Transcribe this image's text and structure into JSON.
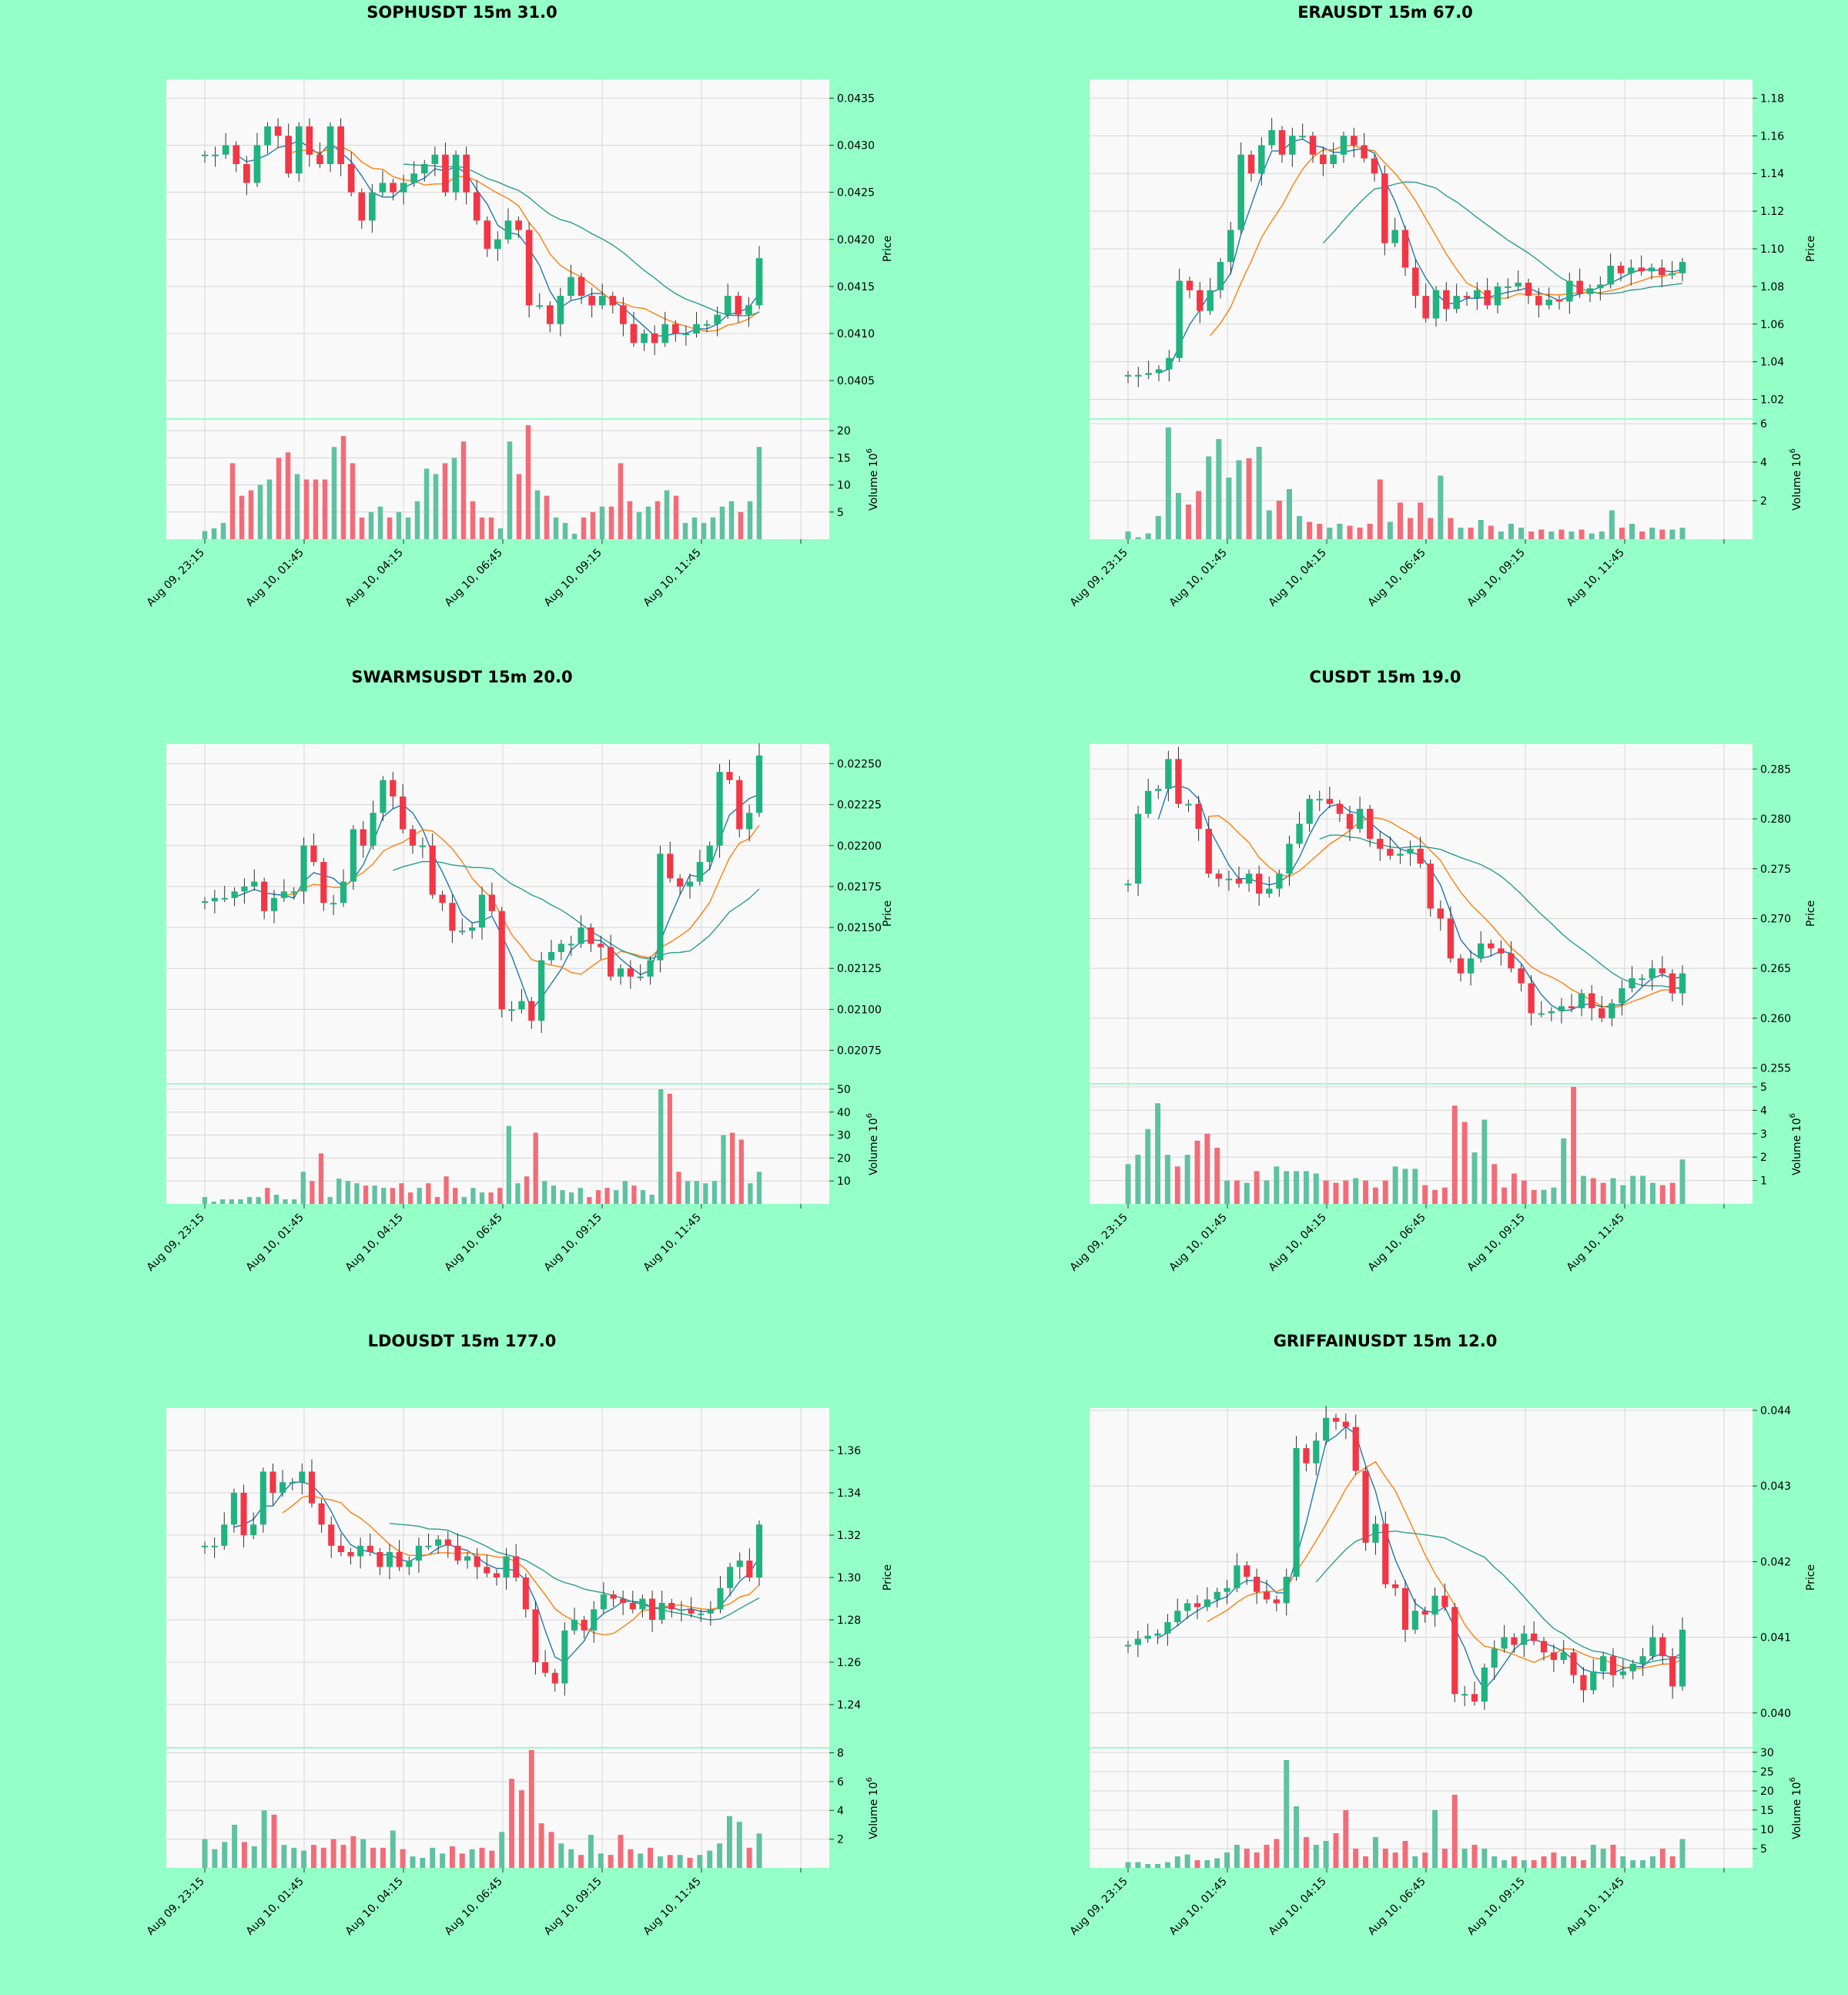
{
  "colors": {
    "page_bg": "#94ffc6",
    "panel_bg": "#f9f9f9",
    "up": "#1fb37f",
    "down": "#f23645",
    "vol_up": "#5ec2a0",
    "vol_down": "#f26c78",
    "ma_fast": "#1f77b4",
    "ma_mid": "#ff7f0e",
    "ma_slow": "#2ca02c",
    "ma_teal": "#2a9d8f",
    "grid": "#d6d6d6"
  },
  "common": {
    "x_tick_labels": [
      "Aug 09, 23:15",
      "Aug 10, 01:45",
      "Aug 10, 04:15",
      "Aug 10, 06:45",
      "Aug 10, 09:15",
      "Aug 10, 11:45"
    ],
    "price_label": "Price",
    "volume_label": "Volume",
    "volume_exp": "6"
  },
  "chart_data": [
    {
      "type": "candlestick",
      "title": "SOPHUSDT 15m 31.0",
      "price": [
        0.0429,
        0.0429,
        0.043,
        0.0428,
        0.0426,
        0.043,
        0.0432,
        0.0431,
        0.0427,
        0.0432,
        0.0429,
        0.0428,
        0.0432,
        0.0428,
        0.0425,
        0.0422,
        0.0425,
        0.0426,
        0.0425,
        0.0426,
        0.0427,
        0.0428,
        0.0429,
        0.0425,
        0.0429,
        0.0425,
        0.0422,
        0.0419,
        0.042,
        0.0422,
        0.0421,
        0.0413,
        0.0413,
        0.0411,
        0.0414,
        0.0416,
        0.0414,
        0.0413,
        0.0414,
        0.0413,
        0.0411,
        0.0409,
        0.041,
        0.0409,
        0.0411,
        0.041,
        0.041,
        0.0411,
        0.0411,
        0.0412,
        0.0414,
        0.0412,
        0.0413,
        0.0418
      ],
      "ylim": [
        0.0401,
        0.0437
      ],
      "yticks": [
        0.0405,
        0.041,
        0.0415,
        0.042,
        0.0425,
        0.043,
        0.0435
      ],
      "ytick_labels": [
        "0.0405",
        "0.0410",
        "0.0415",
        "0.0420",
        "0.0425",
        "0.0430",
        "0.0435"
      ],
      "volume_yticks": [
        5,
        10,
        15,
        20
      ],
      "volume_ylim": [
        0,
        22
      ],
      "volume": [
        1.5,
        2,
        3,
        14,
        8,
        9,
        10,
        11,
        15,
        16,
        12,
        11,
        11,
        11,
        17,
        19,
        14,
        4,
        5,
        6,
        4,
        5,
        4,
        7,
        13,
        12,
        14,
        15,
        18,
        7,
        4,
        4,
        2,
        18,
        12,
        21,
        9,
        8,
        4,
        3,
        1,
        4,
        5,
        6,
        6,
        14,
        7,
        5,
        6,
        7,
        9,
        8,
        3,
        4,
        3,
        4,
        6,
        7,
        5,
        7,
        17
      ],
      "ma_periods": [
        "fast",
        "mid",
        "slow"
      ]
    },
    {
      "type": "candlestick",
      "title": "ERAUSDT 15m 67.0",
      "price": [
        1.033,
        1.033,
        1.034,
        1.036,
        1.042,
        1.083,
        1.078,
        1.067,
        1.078,
        1.093,
        1.11,
        1.15,
        1.14,
        1.155,
        1.163,
        1.15,
        1.16,
        1.16,
        1.15,
        1.145,
        1.15,
        1.16,
        1.155,
        1.148,
        1.14,
        1.103,
        1.11,
        1.09,
        1.075,
        1.063,
        1.078,
        1.068,
        1.075,
        1.074,
        1.078,
        1.07,
        1.08,
        1.08,
        1.082,
        1.075,
        1.07,
        1.073,
        1.072,
        1.083,
        1.076,
        1.079,
        1.081,
        1.091,
        1.087,
        1.09,
        1.088,
        1.09,
        1.086,
        1.087,
        1.093
      ],
      "ylim": [
        1.01,
        1.19
      ],
      "yticks": [
        1.02,
        1.04,
        1.06,
        1.08,
        1.1,
        1.12,
        1.14,
        1.16,
        1.18
      ],
      "ytick_labels": [
        "1.02",
        "1.04",
        "1.06",
        "1.08",
        "1.10",
        "1.12",
        "1.14",
        "1.16",
        "1.18"
      ],
      "volume_yticks": [
        2,
        4,
        6
      ],
      "volume_ylim": [
        0,
        6.2
      ],
      "volume": [
        0.4,
        0.1,
        0.3,
        1.2,
        5.8,
        2.4,
        1.8,
        2.5,
        4.3,
        5.2,
        3.2,
        4.1,
        4.2,
        4.8,
        1.5,
        2.0,
        2.6,
        1.2,
        0.9,
        0.8,
        0.6,
        0.8,
        0.7,
        0.6,
        0.8,
        3.1,
        0.9,
        1.9,
        1.1,
        1.9,
        1.1,
        3.3,
        1.1,
        0.6,
        0.6,
        1.0,
        0.7,
        0.4,
        0.8,
        0.6,
        0.4,
        0.5,
        0.4,
        0.5,
        0.4,
        0.5,
        0.3,
        0.4,
        1.5,
        0.6,
        0.8,
        0.4,
        0.6,
        0.5,
        0.5,
        0.6
      ],
      "ma_periods": [
        "fast",
        "mid",
        "slow"
      ]
    },
    {
      "type": "candlestick",
      "title": "SWARMSUSDT 15m 20.0",
      "price": [
        0.02166,
        0.02168,
        0.02168,
        0.02172,
        0.02175,
        0.02178,
        0.0216,
        0.02168,
        0.02172,
        0.02172,
        0.022,
        0.0219,
        0.02165,
        0.02165,
        0.02178,
        0.0221,
        0.022,
        0.0222,
        0.0224,
        0.0223,
        0.0221,
        0.022,
        0.022,
        0.0217,
        0.02165,
        0.02148,
        0.02148,
        0.0215,
        0.0217,
        0.0216,
        0.021,
        0.021,
        0.02105,
        0.02093,
        0.0213,
        0.02135,
        0.0214,
        0.0214,
        0.0215,
        0.0214,
        0.02138,
        0.0212,
        0.02125,
        0.0212,
        0.0212,
        0.0213,
        0.02195,
        0.0218,
        0.02175,
        0.02178,
        0.0219,
        0.022,
        0.02245,
        0.0224,
        0.0221,
        0.0222,
        0.02255
      ],
      "ylim": [
        0.02055,
        0.02262
      ],
      "yticks": [
        0.02075,
        0.021,
        0.02125,
        0.0215,
        0.02175,
        0.022,
        0.02225,
        0.0225
      ],
      "ytick_labels": [
        "0.02075",
        "0.02100",
        "0.02125",
        "0.02150",
        "0.02175",
        "0.02200",
        "0.02225",
        "0.02250"
      ],
      "volume_yticks": [
        10,
        20,
        30,
        40,
        50
      ],
      "volume_ylim": [
        0,
        52
      ],
      "volume": [
        3,
        1,
        2,
        2,
        2,
        3,
        3,
        7,
        4,
        2,
        2,
        14,
        10,
        22,
        3,
        11,
        10,
        9,
        8,
        8,
        7,
        7,
        9,
        5,
        7,
        9,
        3,
        12,
        7,
        3,
        7,
        5,
        5,
        7,
        34,
        9,
        12,
        31,
        10,
        8,
        6,
        5,
        7,
        3,
        6,
        7,
        6,
        10,
        8,
        6,
        4,
        50,
        48,
        14,
        10,
        10,
        9,
        10,
        30,
        31,
        28,
        9,
        14
      ],
      "ma_periods": [
        "fast",
        "mid",
        "slow"
      ]
    },
    {
      "type": "candlestick",
      "title": "CUSDT 15m 19.0",
      "price": [
        0.2735,
        0.2805,
        0.2828,
        0.283,
        0.286,
        0.2815,
        0.2815,
        0.279,
        0.2745,
        0.274,
        0.274,
        0.2735,
        0.2745,
        0.2725,
        0.273,
        0.2745,
        0.2775,
        0.2795,
        0.282,
        0.282,
        0.2815,
        0.2805,
        0.279,
        0.281,
        0.278,
        0.277,
        0.2763,
        0.2765,
        0.277,
        0.2755,
        0.271,
        0.27,
        0.266,
        0.2645,
        0.266,
        0.2675,
        0.267,
        0.2665,
        0.265,
        0.2635,
        0.2605,
        0.2605,
        0.2607,
        0.2612,
        0.261,
        0.2625,
        0.261,
        0.26,
        0.2615,
        0.263,
        0.264,
        0.264,
        0.265,
        0.2645,
        0.2625,
        0.2645
      ],
      "ylim": [
        0.2535,
        0.2875
      ],
      "yticks": [
        0.255,
        0.26,
        0.265,
        0.27,
        0.275,
        0.28,
        0.285
      ],
      "ytick_labels": [
        "0.255",
        "0.260",
        "0.265",
        "0.270",
        "0.275",
        "0.280",
        "0.285"
      ],
      "volume_yticks": [
        1,
        2,
        3,
        4,
        5
      ],
      "volume_ylim": [
        0,
        5.1
      ],
      "volume": [
        1.7,
        2.1,
        3.2,
        4.3,
        2.1,
        1.6,
        2.1,
        2.7,
        3.0,
        2.4,
        1.0,
        1.0,
        0.9,
        1.4,
        1.0,
        1.6,
        1.4,
        1.4,
        1.4,
        1.3,
        1.0,
        0.9,
        1.0,
        1.1,
        1.0,
        0.7,
        1.0,
        1.6,
        1.5,
        1.5,
        0.8,
        0.6,
        0.7,
        4.2,
        3.5,
        2.2,
        3.6,
        1.7,
        0.7,
        1.3,
        1.0,
        0.6,
        0.6,
        0.7,
        2.8,
        5.0,
        1.2,
        1.1,
        0.9,
        1.1,
        0.8,
        1.2,
        1.2,
        0.9,
        0.8,
        0.9,
        1.9
      ],
      "ma_periods": [
        "fast",
        "mid",
        "slow"
      ]
    },
    {
      "type": "candlestick",
      "title": "LDOUSDT 15m 177.0",
      "price": [
        1.315,
        1.315,
        1.325,
        1.34,
        1.32,
        1.325,
        1.35,
        1.34,
        1.345,
        1.345,
        1.35,
        1.335,
        1.325,
        1.315,
        1.312,
        1.31,
        1.315,
        1.312,
        1.305,
        1.312,
        1.305,
        1.308,
        1.315,
        1.315,
        1.318,
        1.315,
        1.308,
        1.31,
        1.305,
        1.302,
        1.3,
        1.31,
        1.3,
        1.285,
        1.26,
        1.255,
        1.25,
        1.275,
        1.28,
        1.275,
        1.285,
        1.292,
        1.29,
        1.288,
        1.285,
        1.29,
        1.28,
        1.288,
        1.285,
        1.285,
        1.283,
        1.283,
        1.285,
        1.295,
        1.305,
        1.308,
        1.3,
        1.325
      ],
      "ylim": [
        1.22,
        1.38
      ],
      "yticks": [
        1.24,
        1.26,
        1.28,
        1.3,
        1.32,
        1.34,
        1.36
      ],
      "ytick_labels": [
        "1.24",
        "1.26",
        "1.28",
        "1.30",
        "1.32",
        "1.34",
        "1.36"
      ],
      "volume_yticks": [
        2,
        4,
        6,
        8
      ],
      "volume_ylim": [
        0,
        8.3
      ],
      "volume": [
        2,
        1.3,
        1.8,
        3,
        1.8,
        1.5,
        4,
        3.7,
        1.6,
        1.4,
        1.2,
        1.6,
        1.4,
        2.0,
        1.6,
        2.2,
        2.0,
        1.4,
        1.4,
        2.6,
        1.3,
        0.8,
        0.7,
        1.4,
        1.0,
        1.5,
        1.0,
        1.3,
        1.4,
        1.2,
        2.5,
        6.2,
        5.4,
        8.2,
        3.1,
        2.5,
        1.7,
        1.3,
        0.9,
        2.3,
        1.0,
        0.9,
        2.3,
        1.3,
        1.0,
        1.4,
        0.8,
        0.9,
        0.9,
        0.7,
        0.9,
        1.2,
        1.7,
        3.6,
        3.2,
        1.4,
        2.4
      ],
      "ma_periods": [
        "fast",
        "mid",
        "slow"
      ]
    },
    {
      "type": "candlestick",
      "title": "GRIFFAINUSDT 15m 12.0",
      "price": [
        0.0409,
        0.04098,
        0.04102,
        0.04105,
        0.0412,
        0.04135,
        0.04145,
        0.0414,
        0.0415,
        0.0416,
        0.04165,
        0.04195,
        0.0418,
        0.0416,
        0.0415,
        0.04145,
        0.0418,
        0.0435,
        0.0433,
        0.0436,
        0.0439,
        0.04385,
        0.04378,
        0.0432,
        0.04225,
        0.0425,
        0.0417,
        0.04165,
        0.0411,
        0.04135,
        0.0413,
        0.04155,
        0.0414,
        0.04025,
        0.04025,
        0.04015,
        0.0406,
        0.04085,
        0.041,
        0.0409,
        0.04105,
        0.04095,
        0.0408,
        0.0407,
        0.0408,
        0.0405,
        0.0403,
        0.04055,
        0.04075,
        0.0405,
        0.04055,
        0.04065,
        0.04075,
        0.041,
        0.04075,
        0.04035,
        0.0411
      ],
      "ylim": [
        0.03955,
        0.04403
      ],
      "yticks": [
        0.04,
        0.041,
        0.042,
        0.043,
        0.044
      ],
      "ytick_labels": [
        "0.040",
        "0.041",
        "0.042",
        "0.043",
        "0.044"
      ],
      "volume_yticks": [
        5,
        10,
        15,
        20,
        25,
        30
      ],
      "volume_ylim": [
        0,
        31
      ],
      "volume": [
        1.5,
        1.5,
        1,
        1,
        1.5,
        3,
        3.5,
        2,
        2,
        2.5,
        4,
        6,
        5,
        4,
        6,
        7.5,
        28,
        16,
        8,
        6,
        7,
        9,
        15,
        5,
        3,
        8,
        5,
        4,
        7,
        3,
        4,
        15,
        5,
        19,
        5,
        6,
        5,
        3,
        2,
        3,
        2,
        2,
        3,
        4,
        3,
        3,
        2,
        6,
        5,
        6,
        3,
        2,
        2,
        3,
        5,
        3,
        7.5
      ],
      "ma_periods": [
        "fast",
        "mid",
        "slow"
      ]
    }
  ]
}
